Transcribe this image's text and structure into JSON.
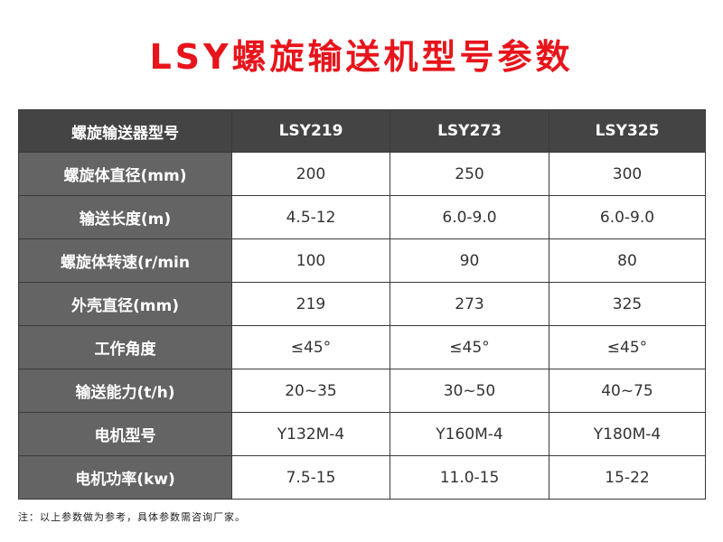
{
  "title": "LSY螺旋输送机型号参数",
  "table": {
    "header": [
      "螺旋输送器型号",
      "LSY219",
      "LSY273",
      "LSY325"
    ],
    "rows": [
      {
        "label": "螺旋体直径(mm)",
        "values": [
          "200",
          "250",
          "300"
        ]
      },
      {
        "label": "输送长度(m)",
        "values": [
          "4.5-12",
          "6.0-9.0",
          "6.0-9.0"
        ]
      },
      {
        "label": "螺旋体转速(r/min",
        "values": [
          "100",
          "90",
          "80"
        ]
      },
      {
        "label": "外壳直径(mm)",
        "values": [
          "219",
          "273",
          "325"
        ]
      },
      {
        "label": "工作角度",
        "values": [
          "≤45°",
          "≤45°",
          "≤45°"
        ]
      },
      {
        "label": "输送能力(t/h)",
        "values": [
          "20~35",
          "30~50",
          "40~75"
        ]
      },
      {
        "label": "电机型号",
        "values": [
          "Y132M-4",
          "Y160M-4",
          "Y180M-4"
        ]
      },
      {
        "label": "电机功率(kw)",
        "values": [
          "7.5-15",
          "11.0-15",
          "15-22"
        ]
      }
    ]
  },
  "note": "注：以上参数做为参考，具体参数需咨询厂家。",
  "colors": {
    "title": "#e8141b",
    "header_bg": "#444444",
    "label_bg": "#646464"
  }
}
